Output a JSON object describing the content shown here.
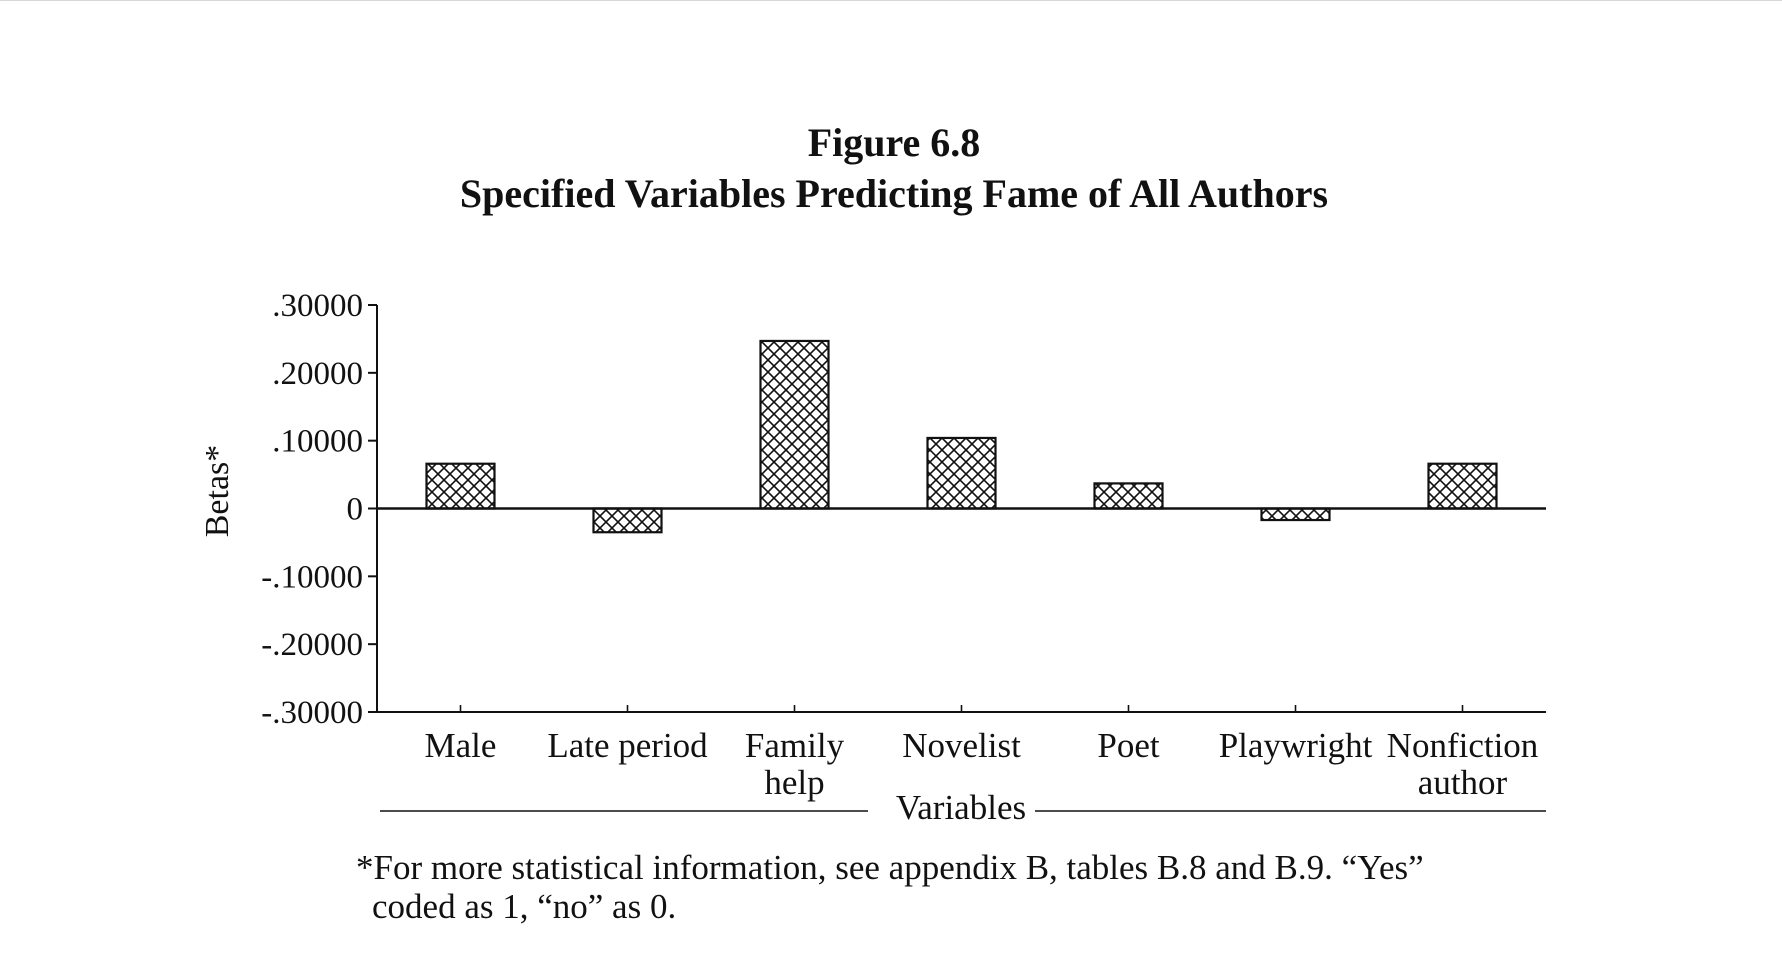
{
  "figure": {
    "number": "Figure 6.8",
    "title": "Specified Variables Predicting Fame of All Authors"
  },
  "chart_data": {
    "type": "bar",
    "title": "Specified Variables Predicting Fame of All Authors",
    "xlabel": "Variables",
    "ylabel": "Betas*",
    "ylim": [
      -0.3,
      0.3
    ],
    "yticks": [
      0.3,
      0.2,
      0.1,
      0,
      -0.1,
      -0.2,
      -0.3
    ],
    "ytick_labels": [
      ".30000",
      ".20000",
      ".10000",
      "0",
      "-.10000",
      "-.20000",
      "-.30000"
    ],
    "categories": [
      "Male",
      "Late period",
      "Family help",
      "Novelist",
      "Poet",
      "Playwright",
      "Nonfiction author"
    ],
    "category_lines": [
      [
        "Male"
      ],
      [
        "Late period"
      ],
      [
        "Family",
        "help"
      ],
      [
        "Novelist"
      ],
      [
        "Poet"
      ],
      [
        "Playwright"
      ],
      [
        "Nonfiction",
        "author"
      ]
    ],
    "values": [
      0.066,
      -0.035,
      0.247,
      0.104,
      0.037,
      -0.017,
      0.066
    ],
    "grid": false,
    "legend": "none",
    "bar_pattern": "crosshatch",
    "colors": {
      "ink": "#111111",
      "background": "#ffffff"
    }
  },
  "footnote": {
    "line1": "*For more statistical information, see appendix B, tables B.8 and B.9. “Yes”",
    "line2": "coded as 1, “no” as 0."
  }
}
